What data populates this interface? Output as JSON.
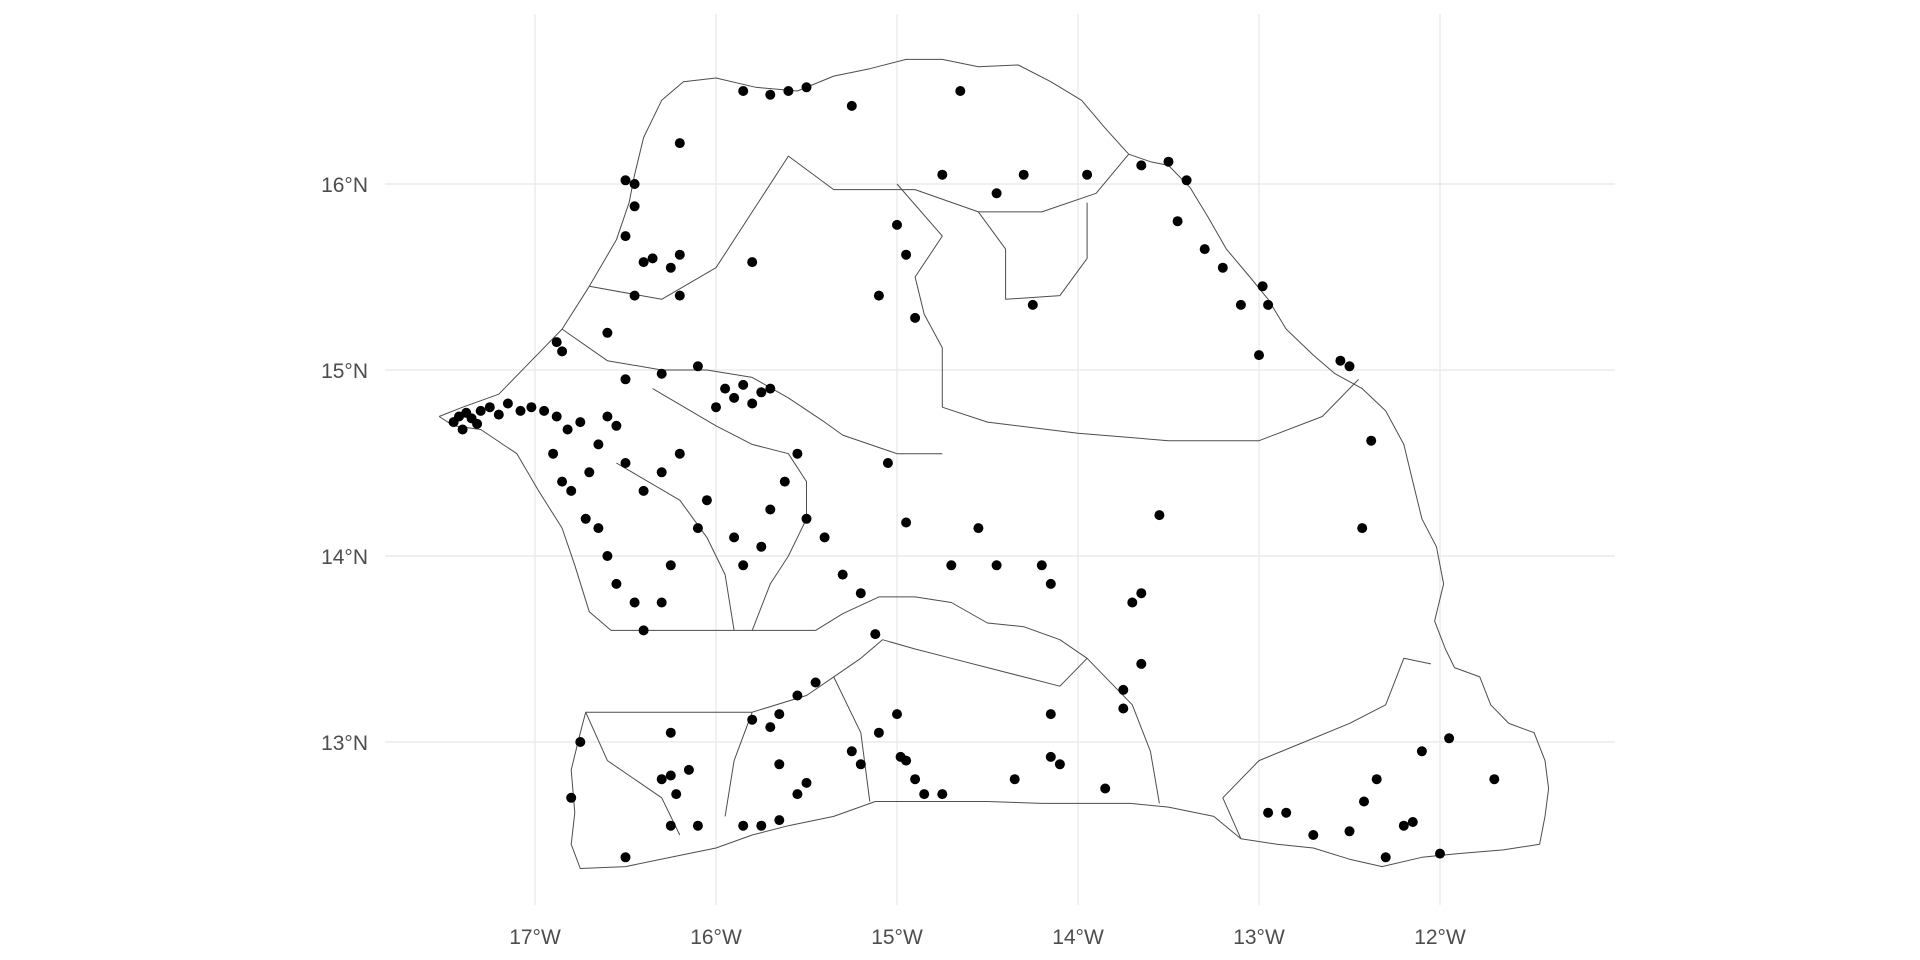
{
  "chart_data": {
    "type": "scatter",
    "title": "",
    "xlabel": "",
    "ylabel": "",
    "xlim": [
      -17.7,
      -11.3
    ],
    "ylim": [
      12.2,
      16.9
    ],
    "grid": true,
    "point_color": "#000000",
    "x_ticks": [
      {
        "value": -17,
        "label": "17°W"
      },
      {
        "value": -16,
        "label": "16°W"
      },
      {
        "value": -15,
        "label": "15°W"
      },
      {
        "value": -14,
        "label": "14°W"
      },
      {
        "value": -13,
        "label": "13°W"
      },
      {
        "value": -12,
        "label": "12°W"
      }
    ],
    "y_ticks": [
      {
        "value": 16,
        "label": "16°N"
      },
      {
        "value": 15,
        "label": "15°N"
      },
      {
        "value": 14,
        "label": "14°N"
      },
      {
        "value": 13,
        "label": "13°N"
      }
    ],
    "boundaries": [
      [
        [
          -17.53,
          14.75
        ],
        [
          -17.4,
          14.8
        ],
        [
          -17.2,
          14.87
        ],
        [
          -17.05,
          15.02
        ],
        [
          -16.85,
          15.22
        ],
        [
          -16.7,
          15.45
        ],
        [
          -16.55,
          15.7
        ],
        [
          -16.48,
          15.9
        ],
        [
          -16.45,
          16.05
        ],
        [
          -16.4,
          16.25
        ],
        [
          -16.3,
          16.45
        ],
        [
          -16.18,
          16.55
        ],
        [
          -16,
          16.57
        ],
        [
          -15.78,
          16.52
        ],
        [
          -15.55,
          16.5
        ],
        [
          -15.35,
          16.58
        ],
        [
          -15.15,
          16.62
        ],
        [
          -14.95,
          16.67
        ],
        [
          -14.75,
          16.67
        ],
        [
          -14.55,
          16.63
        ],
        [
          -14.33,
          16.64
        ],
        [
          -14.15,
          16.55
        ],
        [
          -13.98,
          16.45
        ],
        [
          -13.85,
          16.3
        ],
        [
          -13.72,
          16.16
        ],
        [
          -13.6,
          16.12
        ],
        [
          -13.5,
          16.1
        ],
        [
          -13.38,
          15.98
        ],
        [
          -13.28,
          15.82
        ],
        [
          -13.18,
          15.65
        ],
        [
          -13.05,
          15.5
        ],
        [
          -12.95,
          15.38
        ],
        [
          -12.85,
          15.22
        ],
        [
          -12.7,
          15.08
        ],
        [
          -12.58,
          14.98
        ],
        [
          -12.43,
          14.9
        ],
        [
          -12.3,
          14.78
        ],
        [
          -12.2,
          14.6
        ],
        [
          -12.15,
          14.4
        ],
        [
          -12.1,
          14.2
        ],
        [
          -12.02,
          14.05
        ],
        [
          -11.98,
          13.85
        ],
        [
          -12.03,
          13.65
        ],
        [
          -11.97,
          13.5
        ],
        [
          -11.92,
          13.4
        ],
        [
          -11.78,
          13.35
        ],
        [
          -11.72,
          13.2
        ],
        [
          -11.62,
          13.1
        ],
        [
          -11.48,
          13.05
        ],
        [
          -11.42,
          12.9
        ],
        [
          -11.4,
          12.75
        ],
        [
          -11.42,
          12.6
        ],
        [
          -11.45,
          12.45
        ],
        [
          -11.65,
          12.42
        ],
        [
          -11.9,
          12.4
        ],
        [
          -12.1,
          12.38
        ],
        [
          -12.32,
          12.33
        ],
        [
          -12.5,
          12.37
        ],
        [
          -12.7,
          12.43
        ],
        [
          -12.9,
          12.45
        ],
        [
          -13.1,
          12.48
        ],
        [
          -13.25,
          12.6
        ],
        [
          -13.5,
          12.65
        ],
        [
          -13.71,
          12.67
        ],
        [
          -14.2,
          12.67
        ],
        [
          -14.5,
          12.68
        ],
        [
          -14.8,
          12.68
        ],
        [
          -15.12,
          12.68
        ],
        [
          -15.35,
          12.6
        ],
        [
          -15.6,
          12.55
        ],
        [
          -15.8,
          12.5
        ],
        [
          -16.0,
          12.43
        ],
        [
          -16.25,
          12.38
        ],
        [
          -16.5,
          12.33
        ],
        [
          -16.75,
          12.32
        ],
        [
          -16.8,
          12.45
        ],
        [
          -16.78,
          12.62
        ],
        [
          -16.8,
          12.85
        ],
        [
          -16.75,
          13.05
        ],
        [
          -16.72,
          13.16
        ],
        [
          -16.4,
          13.16
        ],
        [
          -16.0,
          13.16
        ],
        [
          -15.8,
          13.16
        ],
        [
          -15.5,
          13.25
        ],
        [
          -15.35,
          13.35
        ],
        [
          -15.2,
          13.45
        ],
        [
          -15.08,
          13.55
        ],
        [
          -14.9,
          13.5
        ],
        [
          -14.7,
          13.45
        ],
        [
          -14.5,
          13.4
        ],
        [
          -14.3,
          13.35
        ],
        [
          -14.1,
          13.3
        ],
        [
          -13.95,
          13.45
        ],
        [
          -14.1,
          13.55
        ],
        [
          -14.3,
          13.62
        ],
        [
          -14.5,
          13.64
        ],
        [
          -14.7,
          13.75
        ],
        [
          -14.9,
          13.78
        ],
        [
          -15.1,
          13.78
        ],
        [
          -15.3,
          13.69
        ],
        [
          -15.45,
          13.6
        ],
        [
          -15.7,
          13.6
        ],
        [
          -16.0,
          13.6
        ],
        [
          -16.4,
          13.6
        ],
        [
          -16.58,
          13.6
        ],
        [
          -16.7,
          13.7
        ],
        [
          -16.78,
          13.95
        ],
        [
          -16.85,
          14.15
        ],
        [
          -16.98,
          14.35
        ],
        [
          -17.1,
          14.55
        ],
        [
          -17.3,
          14.68
        ],
        [
          -17.45,
          14.7
        ],
        [
          -17.53,
          14.75
        ]
      ],
      [
        [
          -16.7,
          15.45
        ],
        [
          -16.3,
          15.38
        ],
        [
          -16.0,
          15.55
        ],
        [
          -15.8,
          15.85
        ],
        [
          -15.6,
          16.15
        ],
        [
          -15.35,
          15.97
        ],
        [
          -14.9,
          15.97
        ],
        [
          -14.55,
          15.85
        ],
        [
          -14.2,
          15.85
        ],
        [
          -13.9,
          15.95
        ],
        [
          -13.72,
          16.16
        ]
      ],
      [
        [
          -15.0,
          16.0
        ],
        [
          -14.75,
          15.72
        ],
        [
          -14.9,
          15.5
        ],
        [
          -14.85,
          15.3
        ],
        [
          -14.75,
          15.12
        ],
        [
          -14.75,
          14.8
        ],
        [
          -14.5,
          14.72
        ],
        [
          -14.0,
          14.66
        ],
        [
          -13.5,
          14.62
        ],
        [
          -13.0,
          14.62
        ],
        [
          -12.65,
          14.75
        ],
        [
          -12.45,
          14.95
        ]
      ],
      [
        [
          -14.55,
          15.85
        ],
        [
          -14.4,
          15.65
        ],
        [
          -14.4,
          15.38
        ],
        [
          -14.1,
          15.4
        ],
        [
          -13.95,
          15.6
        ],
        [
          -13.95,
          15.9
        ]
      ],
      [
        [
          -16.85,
          15.22
        ],
        [
          -16.6,
          15.05
        ],
        [
          -16.3,
          15.0
        ],
        [
          -16.05,
          15.0
        ],
        [
          -15.8,
          14.96
        ],
        [
          -15.6,
          14.85
        ],
        [
          -15.4,
          14.72
        ],
        [
          -15.3,
          14.65
        ],
        [
          -15.0,
          14.55
        ],
        [
          -14.75,
          14.55
        ]
      ],
      [
        [
          -16.35,
          14.9
        ],
        [
          -16.0,
          14.7
        ],
        [
          -15.8,
          14.6
        ],
        [
          -15.6,
          14.55
        ],
        [
          -15.5,
          14.4
        ],
        [
          -15.5,
          14.2
        ],
        [
          -15.6,
          14.0
        ],
        [
          -15.7,
          13.85
        ],
        [
          -15.8,
          13.6
        ]
      ],
      [
        [
          -16.55,
          14.5
        ],
        [
          -16.2,
          14.3
        ],
        [
          -16.05,
          14.1
        ],
        [
          -15.95,
          13.9
        ],
        [
          -15.9,
          13.6
        ]
      ],
      [
        [
          -16.72,
          13.16
        ],
        [
          -16.6,
          12.9
        ],
        [
          -16.3,
          12.7
        ],
        [
          -16.2,
          12.5
        ]
      ],
      [
        [
          -15.8,
          13.16
        ],
        [
          -15.9,
          12.9
        ],
        [
          -15.95,
          12.6
        ]
      ],
      [
        [
          -15.35,
          13.35
        ],
        [
          -15.2,
          13.05
        ],
        [
          -15.15,
          12.68
        ]
      ],
      [
        [
          -13.95,
          13.45
        ],
        [
          -13.7,
          13.2
        ],
        [
          -13.6,
          12.95
        ],
        [
          -13.55,
          12.67
        ]
      ],
      [
        [
          -13.1,
          12.48
        ],
        [
          -13.2,
          12.7
        ],
        [
          -13.0,
          12.9
        ],
        [
          -12.75,
          13.0
        ],
        [
          -12.5,
          13.1
        ],
        [
          -12.3,
          13.2
        ],
        [
          -12.2,
          13.45
        ],
        [
          -12.05,
          13.42
        ]
      ]
    ],
    "points": [
      [
        -17.45,
        14.72
      ],
      [
        -17.42,
        14.75
      ],
      [
        -17.38,
        14.77
      ],
      [
        -17.35,
        14.74
      ],
      [
        -17.3,
        14.78
      ],
      [
        -17.25,
        14.8
      ],
      [
        -17.2,
        14.76
      ],
      [
        -17.15,
        14.82
      ],
      [
        -17.08,
        14.78
      ],
      [
        -17.02,
        14.8
      ],
      [
        -17.4,
        14.68
      ],
      [
        -17.32,
        14.71
      ],
      [
        -16.95,
        14.78
      ],
      [
        -16.88,
        14.75
      ],
      [
        -16.82,
        14.68
      ],
      [
        -16.75,
        14.72
      ],
      [
        -16.9,
        14.55
      ],
      [
        -16.85,
        14.4
      ],
      [
        -16.8,
        14.35
      ],
      [
        -16.72,
        14.2
      ],
      [
        -16.65,
        14.15
      ],
      [
        -16.6,
        14.0
      ],
      [
        -16.55,
        13.85
      ],
      [
        -16.45,
        13.75
      ],
      [
        -16.4,
        13.6
      ],
      [
        -16.3,
        13.75
      ],
      [
        -16.25,
        13.95
      ],
      [
        -16.1,
        14.15
      ],
      [
        -16.05,
        14.3
      ],
      [
        -15.9,
        14.1
      ],
      [
        -15.85,
        13.95
      ],
      [
        -15.75,
        14.05
      ],
      [
        -15.7,
        14.25
      ],
      [
        -15.62,
        14.4
      ],
      [
        -15.55,
        14.55
      ],
      [
        -15.5,
        14.2
      ],
      [
        -15.4,
        14.1
      ],
      [
        -15.3,
        13.9
      ],
      [
        -15.2,
        13.8
      ],
      [
        -16.0,
        14.8
      ],
      [
        -15.95,
        14.9
      ],
      [
        -15.9,
        14.85
      ],
      [
        -15.85,
        14.92
      ],
      [
        -15.8,
        14.82
      ],
      [
        -15.75,
        14.88
      ],
      [
        -15.7,
        14.9
      ],
      [
        -16.2,
        14.55
      ],
      [
        -16.3,
        14.45
      ],
      [
        -16.4,
        14.35
      ],
      [
        -16.5,
        14.5
      ],
      [
        -16.55,
        14.7
      ],
      [
        -16.6,
        14.75
      ],
      [
        -16.65,
        14.6
      ],
      [
        -16.7,
        14.45
      ],
      [
        -16.5,
        14.95
      ],
      [
        -16.3,
        14.98
      ],
      [
        -16.1,
        15.02
      ],
      [
        -16.85,
        15.1
      ],
      [
        -16.88,
        15.15
      ],
      [
        -16.6,
        15.2
      ],
      [
        -16.45,
        15.4
      ],
      [
        -16.2,
        15.4
      ],
      [
        -16.25,
        15.55
      ],
      [
        -16.35,
        15.6
      ],
      [
        -16.2,
        15.62
      ],
      [
        -16.5,
        15.72
      ],
      [
        -16.45,
        15.88
      ],
      [
        -16.45,
        16.0
      ],
      [
        -16.5,
        16.02
      ],
      [
        -16.2,
        16.22
      ],
      [
        -15.85,
        16.5
      ],
      [
        -15.7,
        16.48
      ],
      [
        -15.6,
        16.5
      ],
      [
        -15.5,
        16.52
      ],
      [
        -15.25,
        16.42
      ],
      [
        -14.65,
        16.5
      ],
      [
        -14.75,
        16.05
      ],
      [
        -14.45,
        15.95
      ],
      [
        -14.3,
        16.05
      ],
      [
        -13.95,
        16.05
      ],
      [
        -13.65,
        16.1
      ],
      [
        -13.5,
        16.12
      ],
      [
        -13.4,
        16.02
      ],
      [
        -13.45,
        15.8
      ],
      [
        -13.3,
        15.65
      ],
      [
        -13.2,
        15.55
      ],
      [
        -13.1,
        15.35
      ],
      [
        -12.98,
        15.45
      ],
      [
        -12.95,
        15.35
      ],
      [
        -13.0,
        15.08
      ],
      [
        -12.55,
        15.05
      ],
      [
        -12.5,
        15.02
      ],
      [
        -12.38,
        14.62
      ],
      [
        -12.43,
        14.15
      ],
      [
        -13.55,
        14.22
      ],
      [
        -13.65,
        13.8
      ],
      [
        -13.7,
        13.75
      ],
      [
        -14.2,
        13.95
      ],
      [
        -14.15,
        13.85
      ],
      [
        -14.45,
        13.95
      ],
      [
        -14.55,
        14.15
      ],
      [
        -14.7,
        13.95
      ],
      [
        -14.95,
        14.18
      ],
      [
        -15.05,
        14.5
      ],
      [
        -15.1,
        15.4
      ],
      [
        -14.9,
        15.28
      ],
      [
        -14.95,
        15.62
      ],
      [
        -15.0,
        15.78
      ],
      [
        -15.8,
        15.58
      ],
      [
        -16.4,
        15.58
      ],
      [
        -14.25,
        15.35
      ],
      [
        -16.1,
        12.55
      ],
      [
        -16.25,
        12.55
      ],
      [
        -16.3,
        12.8
      ],
      [
        -16.25,
        12.82
      ],
      [
        -16.15,
        12.85
      ],
      [
        -16.22,
        12.72
      ],
      [
        -16.25,
        13.05
      ],
      [
        -16.75,
        13.0
      ],
      [
        -16.8,
        12.7
      ],
      [
        -16.5,
        12.38
      ],
      [
        -15.85,
        12.55
      ],
      [
        -15.75,
        12.55
      ],
      [
        -15.65,
        12.58
      ],
      [
        -15.55,
        12.72
      ],
      [
        -15.5,
        12.78
      ],
      [
        -15.65,
        12.88
      ],
      [
        -15.7,
        13.08
      ],
      [
        -15.65,
        13.15
      ],
      [
        -15.8,
        13.12
      ],
      [
        -15.55,
        13.25
      ],
      [
        -15.45,
        13.32
      ],
      [
        -15.25,
        12.95
      ],
      [
        -15.2,
        12.88
      ],
      [
        -14.98,
        12.92
      ],
      [
        -14.95,
        12.9
      ],
      [
        -14.9,
        12.8
      ],
      [
        -14.85,
        12.72
      ],
      [
        -14.75,
        12.72
      ],
      [
        -15.1,
        13.05
      ],
      [
        -15.0,
        13.15
      ],
      [
        -14.35,
        12.8
      ],
      [
        -14.1,
        12.88
      ],
      [
        -14.15,
        12.92
      ],
      [
        -14.15,
        13.15
      ],
      [
        -13.85,
        12.75
      ],
      [
        -13.75,
        13.18
      ],
      [
        -13.75,
        13.28
      ],
      [
        -13.65,
        13.42
      ],
      [
        -12.95,
        12.62
      ],
      [
        -12.85,
        12.62
      ],
      [
        -12.7,
        12.5
      ],
      [
        -12.5,
        12.52
      ],
      [
        -12.42,
        12.68
      ],
      [
        -12.35,
        12.8
      ],
      [
        -12.3,
        12.38
      ],
      [
        -12.2,
        12.55
      ],
      [
        -12.15,
        12.57
      ],
      [
        -12.1,
        12.95
      ],
      [
        -11.95,
        13.02
      ],
      [
        -11.7,
        12.8
      ],
      [
        -12.0,
        12.4
      ],
      [
        -15.12,
        13.58
      ]
    ]
  }
}
